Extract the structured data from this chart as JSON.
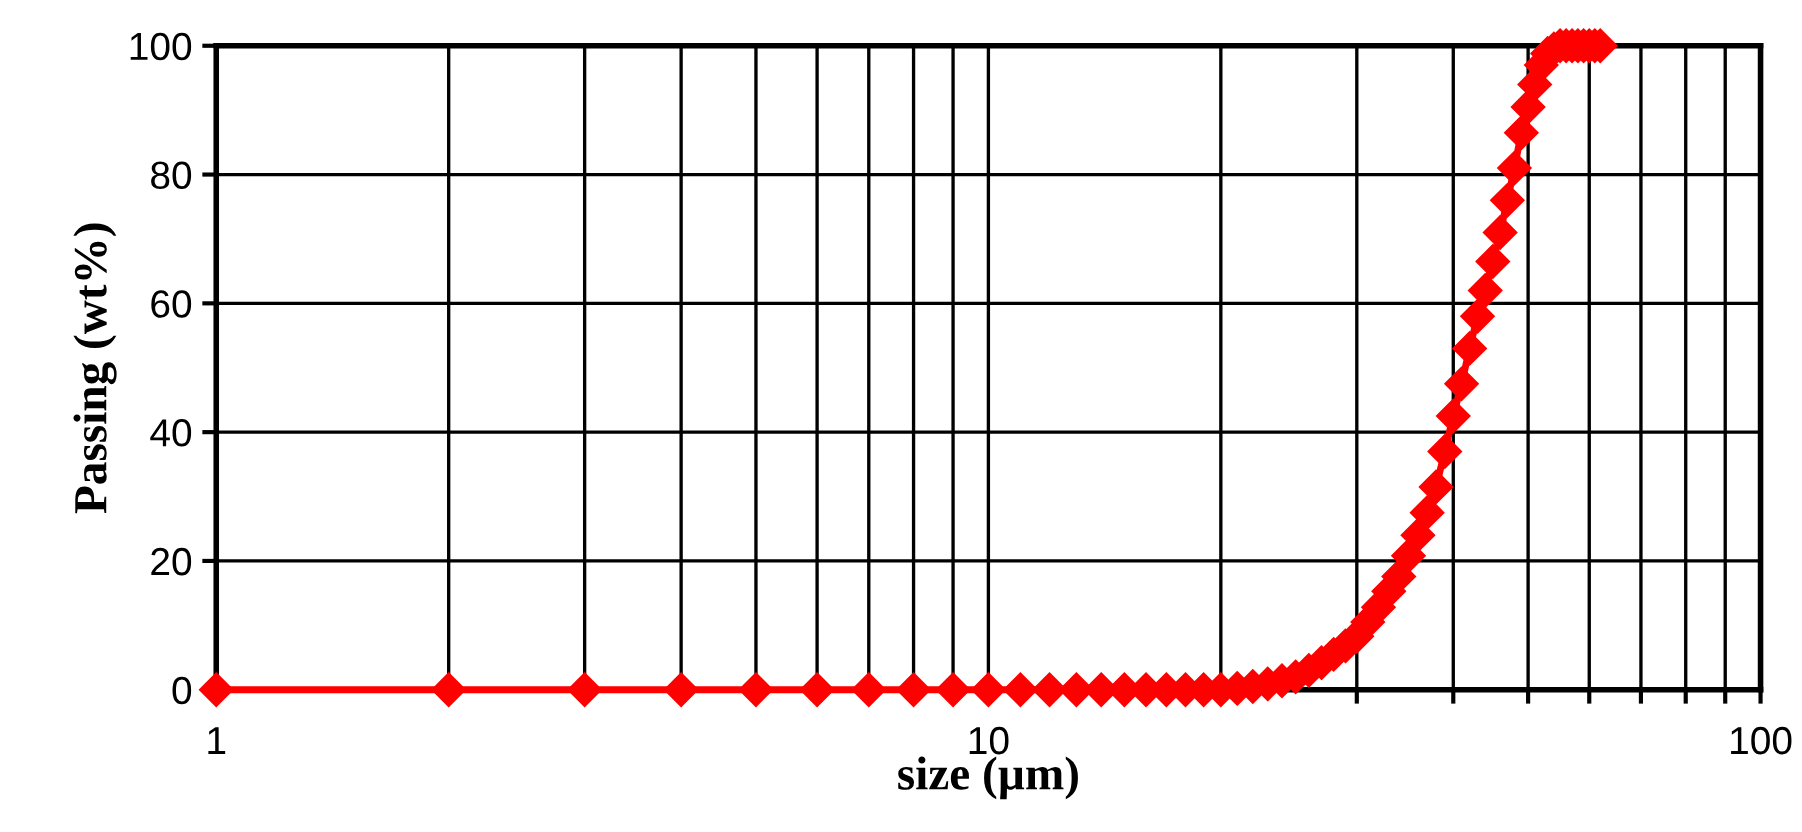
{
  "chart_data": {
    "type": "line",
    "xlabel": "size (µm)",
    "ylabel": "Passing (wt%)",
    "log": "x",
    "x": [
      1,
      2,
      3,
      4,
      5,
      6,
      7,
      8,
      9,
      10,
      11,
      12,
      13,
      14,
      15,
      16,
      17,
      18,
      19,
      20,
      21,
      22,
      23,
      24,
      25,
      26,
      27,
      28,
      29,
      30,
      31,
      32,
      33,
      34,
      35,
      36,
      37,
      38,
      39,
      40,
      41,
      42,
      43,
      44,
      45,
      46,
      47,
      48,
      49,
      50,
      51,
      52,
      53,
      54,
      55,
      56,
      57,
      58,
      59,
      60,
      61,
      62
    ],
    "series": [
      {
        "color": "#ff0000",
        "values": [
          0,
          0,
          0,
          0,
          0,
          0,
          0,
          0,
          0,
          0,
          0,
          0,
          0,
          0,
          0,
          0,
          0,
          0,
          0,
          0,
          0.2,
          0.5,
          0.9,
          1.4,
          2,
          3,
          4.2,
          5.5,
          6.8,
          8.3,
          10.5,
          12.8,
          15.3,
          17.6,
          20.8,
          24,
          27.5,
          31.5,
          37,
          42.5,
          47.5,
          53,
          58,
          62,
          66.5,
          71,
          76,
          81,
          86.5,
          90.5,
          94,
          97,
          98.8,
          99.5,
          100,
          100,
          100,
          100,
          100,
          100,
          100,
          100
        ]
      }
    ],
    "xlim": [
      1,
      100
    ],
    "ylim": [
      0,
      100
    ],
    "xticks": [
      1,
      {
        "value": 2,
        "label": null
      },
      {
        "value": 3,
        "label": null
      },
      {
        "value": 4,
        "label": null
      },
      {
        "value": 5,
        "label": null
      },
      {
        "value": 6,
        "label": null
      },
      {
        "value": 7,
        "label": null
      },
      {
        "value": 8,
        "label": null
      },
      {
        "value": 9,
        "label": null
      },
      10,
      {
        "value": 20,
        "label": null
      },
      {
        "value": 30,
        "label": null
      },
      {
        "value": 40,
        "label": null
      },
      {
        "value": 50,
        "label": null
      },
      {
        "value": 60,
        "label": null
      },
      {
        "value": 70,
        "label": null
      },
      {
        "value": 80,
        "label": null
      },
      {
        "value": 90,
        "label": null
      },
      100
    ],
    "yticks": [
      0,
      20,
      40,
      60,
      80,
      100
    ],
    "grid": true,
    "marker": "diamond",
    "line_style": "solid",
    "legend": false
  }
}
